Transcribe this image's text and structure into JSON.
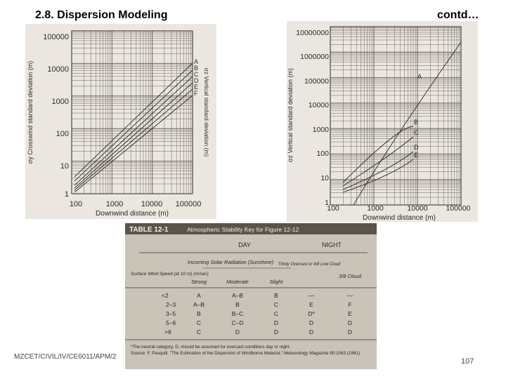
{
  "slide": {
    "title": "2.8. Dispersion Modeling",
    "contd": "contd…",
    "footer": "MZCET/CIVIL/IV/CE6011/APM/2",
    "page_number": "107"
  },
  "left_chart": {
    "ylabel": "σy Crosswind standard deviation (m)",
    "ylabel2": "σz Vertical standard deviation (m)",
    "xlabel": "Downwind distance (m)",
    "y_ticks": [
      "100000",
      "10000",
      "1000",
      "100",
      "10",
      "1"
    ],
    "x_ticks": [
      "100",
      "1000",
      "10000",
      "100000"
    ],
    "curve_labels": [
      "A",
      "B",
      "C",
      "D",
      "E",
      "F"
    ]
  },
  "right_chart": {
    "ylabel": "σz Vertical standard deviation (m)",
    "xlabel": "Downwind distance (m)",
    "y_ticks": [
      "10000000",
      "1000000",
      "100000",
      "10000",
      "1000",
      "100",
      "10",
      "1"
    ],
    "x_ticks": [
      "100",
      "1000",
      "10000",
      "100000"
    ],
    "curve_labels": [
      "A",
      "B",
      "C",
      "D",
      "E"
    ]
  },
  "stability_table": {
    "title": "TABLE 12-1",
    "subtitle": "Atmospheric Stability Key for Figure 12-12",
    "day_label": "DAY",
    "night_label": "NIGHT",
    "radiation_header": "Incoming Solar Radiation (Sunshine)",
    "wind_header": "Surface Wind Speed (at 10 m) (m/sec)",
    "columns": [
      "Strong",
      "Moderate",
      "Slight",
      "Thinly Overcast or 4/8 Low Cloud",
      "3/8 Cloud"
    ],
    "rows": [
      [
        "<2",
        "A",
        "A–B",
        "B",
        "—",
        "—"
      ],
      [
        "2–3",
        "A–B",
        "B",
        "C",
        "E",
        "F"
      ],
      [
        "3–5",
        "B",
        "B–C",
        "C",
        "D*",
        "E"
      ],
      [
        "5–6",
        "C",
        "C–D",
        "D",
        "D",
        "D"
      ],
      [
        ">6",
        "C",
        "D",
        "D",
        "D",
        "D"
      ]
    ],
    "note": "*The neutral category, D, should be assumed for overcast conditions day or night.",
    "source": "Source: F. Pasquill, \"The Estimation of the Dispersion of Windborne Material,\" Meteorology Magazine 90:1063 (1961)."
  }
}
